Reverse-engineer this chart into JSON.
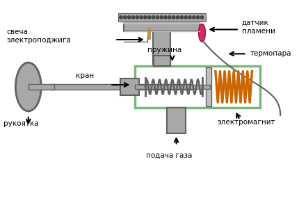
{
  "bg_color": "#ffffff",
  "gray_dark": "#606060",
  "gray_light": "#c0c0c0",
  "gray_med": "#909090",
  "gray_fill": "#a8a8a8",
  "green_border": "#7ab87a",
  "orange_coil": "#cc6600",
  "pink_sensor": "#d03060",
  "tan_electrode": "#b89050",
  "wire_color": "#606060",
  "arrow_color": "#000000",
  "text_color": "#000000",
  "labels": {
    "svecha": "свеча\nэлектроподжига",
    "datchik": "датчик\nпламени",
    "termopara": "термопара",
    "rukoyatka": "рукоятка",
    "kran": "кран",
    "pruzhina": "пружина",
    "elektromagnit": "электромагнит",
    "podacha": "подача газа"
  },
  "figsize": [
    4.3,
    3.21
  ],
  "dpi": 100
}
